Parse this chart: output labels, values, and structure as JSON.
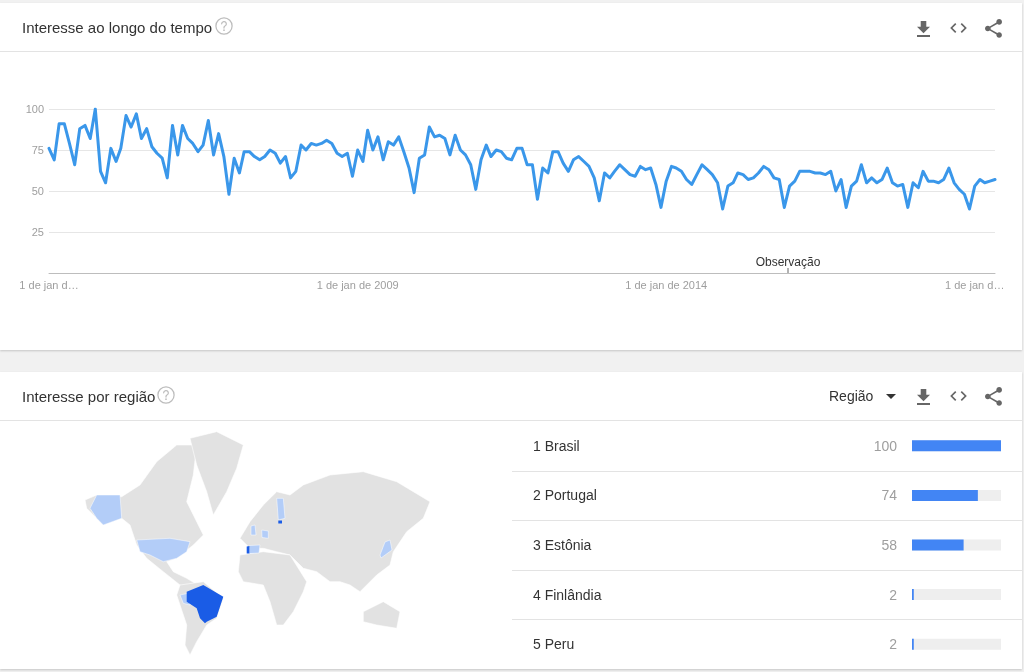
{
  "chart_data": [
    {
      "type": "line",
      "title": "Interesse ao longo do tempo",
      "x": [
        "2004-01",
        "2004-02",
        "2004-03",
        "2004-04",
        "2004-05",
        "2004-06",
        "2004-07",
        "2004-08",
        "2004-09",
        "2004-10",
        "2004-11",
        "2004-12",
        "2005-01",
        "2005-02",
        "2005-03",
        "2005-04",
        "2005-05",
        "2005-06",
        "2005-07",
        "2005-08",
        "2005-09",
        "2005-10",
        "2005-11",
        "2005-12",
        "2006-01",
        "2006-02",
        "2006-03",
        "2006-04",
        "2006-05",
        "2006-06",
        "2006-07",
        "2006-08",
        "2006-09",
        "2006-10",
        "2006-11",
        "2006-12",
        "2007-01",
        "2007-02",
        "2007-03",
        "2007-04",
        "2007-05",
        "2007-06",
        "2007-07",
        "2007-08",
        "2007-09",
        "2007-10",
        "2007-11",
        "2007-12",
        "2008-01",
        "2008-02",
        "2008-03",
        "2008-04",
        "2008-05",
        "2008-06",
        "2008-07",
        "2008-08",
        "2008-09",
        "2008-10",
        "2008-11",
        "2008-12",
        "2009-01",
        "2009-02",
        "2009-03",
        "2009-04",
        "2009-05",
        "2009-06",
        "2009-07",
        "2009-08",
        "2009-09",
        "2009-10",
        "2009-11",
        "2009-12",
        "2010-01",
        "2010-02",
        "2010-03",
        "2010-04",
        "2010-05",
        "2010-06",
        "2010-07",
        "2010-08",
        "2010-09",
        "2010-10",
        "2010-11",
        "2010-12",
        "2011-01",
        "2011-02",
        "2011-03",
        "2011-04",
        "2011-05",
        "2011-06",
        "2011-07",
        "2011-08",
        "2011-09",
        "2011-10",
        "2011-11",
        "2011-12",
        "2012-01",
        "2012-02",
        "2012-03",
        "2012-04",
        "2012-05",
        "2012-06",
        "2012-07",
        "2012-08",
        "2012-09",
        "2012-10",
        "2012-11",
        "2012-12",
        "2013-01",
        "2013-02",
        "2013-03",
        "2013-04",
        "2013-05",
        "2013-06",
        "2013-07",
        "2013-08",
        "2013-09",
        "2013-10",
        "2013-11",
        "2013-12",
        "2014-01",
        "2014-02",
        "2014-03",
        "2014-04",
        "2014-05",
        "2014-06",
        "2014-07",
        "2014-08",
        "2014-09",
        "2014-10",
        "2014-11",
        "2014-12",
        "2015-01",
        "2015-02",
        "2015-03",
        "2015-04",
        "2015-05",
        "2015-06",
        "2015-07",
        "2015-08",
        "2015-09",
        "2015-10",
        "2015-11",
        "2015-12",
        "2016-01",
        "2016-02",
        "2016-03",
        "2016-04",
        "2016-05",
        "2016-06",
        "2016-07",
        "2016-08",
        "2016-09",
        "2016-10",
        "2016-11",
        "2016-12",
        "2017-01",
        "2017-02",
        "2017-03",
        "2017-04",
        "2017-05",
        "2017-06",
        "2017-07",
        "2017-08",
        "2017-09",
        "2017-10",
        "2017-11",
        "2017-12",
        "2018-01",
        "2018-02",
        "2018-03",
        "2018-04",
        "2018-05",
        "2018-06",
        "2018-07",
        "2018-08",
        "2018-09",
        "2018-10",
        "2018-11",
        "2018-12",
        "2019-01",
        "2019-02",
        "2019-03",
        "2019-04",
        "2019-05"
      ],
      "values": [
        76,
        69,
        91,
        91,
        79,
        66,
        88,
        90,
        82,
        100,
        62,
        55,
        76,
        68,
        76,
        96,
        89,
        97,
        82,
        88,
        77,
        73,
        70,
        58,
        90,
        72,
        90,
        82,
        79,
        74,
        78,
        93,
        72,
        85,
        71,
        48,
        70,
        61,
        74,
        74,
        71,
        69,
        71,
        75,
        73,
        67,
        71,
        58,
        62,
        78,
        75,
        79,
        78,
        79,
        81,
        79,
        73,
        71,
        73,
        59,
        75,
        68,
        87,
        75,
        83,
        69,
        80,
        78,
        83,
        74,
        64,
        49,
        70,
        72,
        89,
        83,
        84,
        82,
        72,
        84,
        75,
        72,
        66,
        51,
        69,
        78,
        71,
        75,
        74,
        70,
        69,
        76,
        76,
        66,
        66,
        45,
        64,
        61,
        74,
        74,
        67,
        62,
        69,
        71,
        68,
        65,
        58,
        44,
        61,
        58,
        62,
        66,
        63,
        60,
        59,
        65,
        63,
        64,
        54,
        40,
        56,
        65,
        64,
        62,
        57,
        54,
        60,
        66,
        63,
        60,
        55,
        39,
        53,
        55,
        61,
        60,
        57,
        58,
        61,
        65,
        63,
        58,
        57,
        40,
        53,
        56,
        62,
        62,
        62,
        61,
        61,
        60,
        62,
        50,
        57,
        40,
        53,
        56,
        66,
        55,
        58,
        55,
        57,
        64,
        55,
        53,
        54,
        40,
        55,
        52,
        62,
        56,
        56,
        55,
        57,
        64,
        55,
        51,
        48,
        39,
        53,
        57,
        55,
        56,
        57
      ],
      "color": "#3a97ea",
      "xlim": [
        "2004-01",
        "2019-05"
      ],
      "xticks": [
        {
          "value": "2004-01",
          "label": "1 de jan d…"
        },
        {
          "value": "2009-01",
          "label": "1 de jan de 2009"
        },
        {
          "value": "2014-01",
          "label": "1 de jan de 2014"
        },
        {
          "value": "2019-01",
          "label": "1 de jan d…"
        }
      ],
      "ylim": [
        0,
        100
      ],
      "yticks": [
        25,
        50,
        75,
        100
      ],
      "grid": "y",
      "annotations": [
        "Observação"
      ]
    },
    {
      "type": "other",
      "title": "Interesse por região"
    },
    {
      "type": "bar",
      "orientation": "horizontal",
      "categories": [
        "1 Brasil",
        "2 Portugal",
        "3 Estônia",
        "4 Finlândia",
        "5 Peru"
      ],
      "values": [
        100,
        74,
        58,
        2,
        2
      ],
      "color": "#4285f4",
      "xlim": [
        0,
        100
      ],
      "data_labels": true,
      "tick_labels": "y",
      "annotations": [
        "Região"
      ]
    }
  ]
}
